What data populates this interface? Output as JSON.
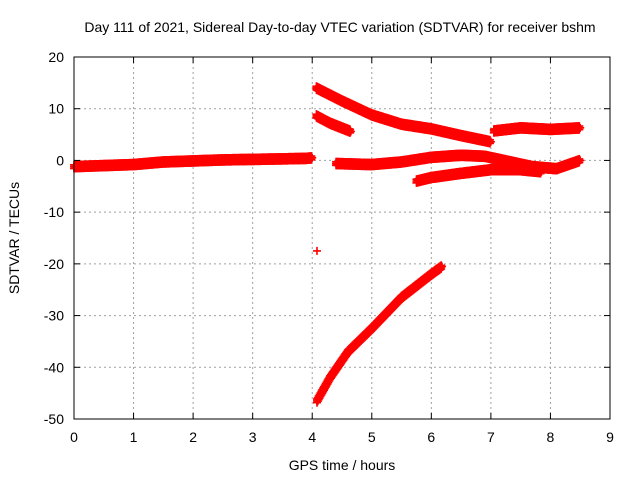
{
  "chart_data": {
    "type": "scatter",
    "title": "Day 111 of 2021, Sidereal Day-to-day VTEC variation (SDTVAR) for receiver bshm",
    "xlabel": "GPS time / hours",
    "ylabel": "SDTVAR / TECUs",
    "xlim": [
      0,
      9
    ],
    "ylim": [
      -50,
      20
    ],
    "xticks": [
      "0",
      "1",
      "2",
      "3",
      "4",
      "5",
      "6",
      "7",
      "8",
      "9"
    ],
    "yticks": [
      "-50",
      "-40",
      "-30",
      "-20",
      "-10",
      "0",
      "10",
      "20"
    ],
    "grid": true,
    "marker": "+",
    "color": "#ff0000",
    "series": [
      {
        "x": [
          0.0,
          0.5,
          1.0,
          1.5,
          2.0,
          2.5,
          3.0,
          3.5,
          3.9,
          4.0
        ],
        "y": [
          -1.2,
          -1.0,
          -0.8,
          -0.3,
          -0.1,
          0.1,
          0.2,
          0.3,
          0.4,
          0.5
        ]
      },
      {
        "x": [
          4.07,
          4.5,
          5.0,
          5.5,
          6.0,
          6.5,
          7.0
        ],
        "y": [
          14.0,
          11.5,
          8.8,
          7.0,
          6.1,
          4.8,
          3.6
        ]
      },
      {
        "x": [
          4.07,
          4.3,
          4.65
        ],
        "y": [
          8.6,
          7.2,
          5.6
        ]
      },
      {
        "x": [
          4.08
        ],
        "y": [
          -17.5
        ]
      },
      {
        "x": [
          4.08,
          4.3,
          4.6,
          5.0,
          5.5,
          6.0,
          6.18
        ],
        "y": [
          -46.5,
          -42.0,
          -37.0,
          -32.5,
          -26.5,
          -22.0,
          -20.5
        ]
      },
      {
        "x": [
          4.4,
          5.0,
          5.5,
          6.0,
          6.5,
          6.9,
          7.3,
          7.7,
          8.1,
          8.5
        ],
        "y": [
          -0.6,
          -0.8,
          -0.3,
          0.6,
          1.0,
          0.8,
          -0.2,
          -1.2,
          -1.6,
          0.0
        ]
      },
      {
        "x": [
          5.75,
          6.0,
          6.5,
          7.0,
          7.5,
          7.85
        ],
        "y": [
          -4.0,
          -3.3,
          -2.5,
          -1.8,
          -1.8,
          -2.2
        ]
      },
      {
        "x": [
          7.05,
          7.5,
          8.0,
          8.5
        ],
        "y": [
          5.7,
          6.3,
          6.0,
          6.3
        ]
      }
    ]
  }
}
